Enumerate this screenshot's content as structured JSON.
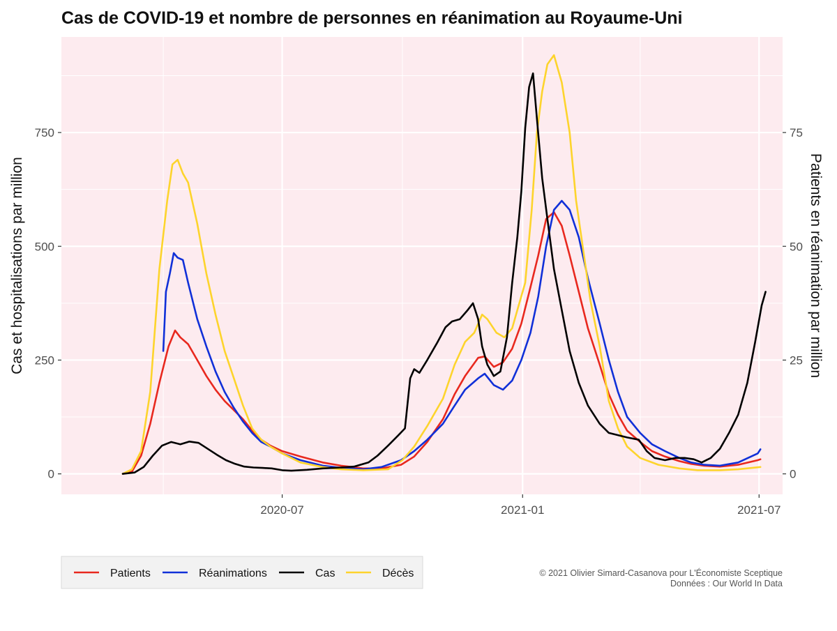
{
  "chart_data": {
    "type": "line",
    "title": "Cas de COVID-19 et nombre de personnes en réanimation au Royaume-Uni",
    "ylabel_left": "Cas et hospitalisations par million",
    "ylabel_right": "Patients en réanimation par million",
    "x_ticks": [
      "2020-07",
      "2021-01",
      "2021-07"
    ],
    "x_tick_dates": [
      "2020-07-01",
      "2021-01-01",
      "2021-07-01"
    ],
    "xlim": [
      "2020-01-14",
      "2021-07-19"
    ],
    "y_left_ticks": [
      0,
      250,
      500,
      750
    ],
    "y_left_lim": [
      -45,
      960
    ],
    "y_right_ticks": [
      0,
      25,
      50,
      75
    ],
    "y_right_lim": [
      -4.5,
      96
    ],
    "grid": true,
    "background": "#fdebef",
    "legend_position": "bottom-left",
    "series": [
      {
        "name": "Patients",
        "color": "#e8281e",
        "axis": "left",
        "points": [
          [
            "2020-03-01",
            0
          ],
          [
            "2020-03-08",
            5
          ],
          [
            "2020-03-15",
            40
          ],
          [
            "2020-03-22",
            110
          ],
          [
            "2020-03-29",
            200
          ],
          [
            "2020-04-05",
            280
          ],
          [
            "2020-04-10",
            315
          ],
          [
            "2020-04-14",
            300
          ],
          [
            "2020-04-20",
            285
          ],
          [
            "2020-04-27",
            250
          ],
          [
            "2020-05-04",
            215
          ],
          [
            "2020-05-11",
            185
          ],
          [
            "2020-05-18",
            160
          ],
          [
            "2020-05-25",
            140
          ],
          [
            "2020-06-01",
            120
          ],
          [
            "2020-06-08",
            95
          ],
          [
            "2020-06-15",
            75
          ],
          [
            "2020-06-22",
            62
          ],
          [
            "2020-07-01",
            50
          ],
          [
            "2020-07-15",
            38
          ],
          [
            "2020-08-01",
            25
          ],
          [
            "2020-08-15",
            18
          ],
          [
            "2020-09-01",
            12
          ],
          [
            "2020-09-15",
            12
          ],
          [
            "2020-09-30",
            20
          ],
          [
            "2020-10-10",
            38
          ],
          [
            "2020-10-20",
            70
          ],
          [
            "2020-11-01",
            120
          ],
          [
            "2020-11-10",
            175
          ],
          [
            "2020-11-18",
            215
          ],
          [
            "2020-11-28",
            255
          ],
          [
            "2020-12-03",
            258
          ],
          [
            "2020-12-10",
            235
          ],
          [
            "2020-12-17",
            245
          ],
          [
            "2020-12-24",
            275
          ],
          [
            "2020-12-31",
            330
          ],
          [
            "2021-01-07",
            410
          ],
          [
            "2021-01-13",
            480
          ],
          [
            "2021-01-19",
            560
          ],
          [
            "2021-01-25",
            575
          ],
          [
            "2021-01-31",
            545
          ],
          [
            "2021-02-06",
            480
          ],
          [
            "2021-02-13",
            400
          ],
          [
            "2021-02-20",
            320
          ],
          [
            "2021-03-01",
            240
          ],
          [
            "2021-03-08",
            175
          ],
          [
            "2021-03-15",
            130
          ],
          [
            "2021-03-22",
            95
          ],
          [
            "2021-04-01",
            70
          ],
          [
            "2021-04-10",
            50
          ],
          [
            "2021-04-20",
            38
          ],
          [
            "2021-05-01",
            28
          ],
          [
            "2021-05-10",
            22
          ],
          [
            "2021-05-20",
            18
          ],
          [
            "2021-06-01",
            16
          ],
          [
            "2021-06-15",
            20
          ],
          [
            "2021-06-30",
            30
          ],
          [
            "2021-07-02",
            32
          ]
        ]
      },
      {
        "name": "Réanimations",
        "color": "#1030d8",
        "axis": "right",
        "points": [
          [
            "2020-04-01",
            27
          ],
          [
            "2020-04-03",
            40
          ],
          [
            "2020-04-06",
            44
          ],
          [
            "2020-04-09",
            48.5
          ],
          [
            "2020-04-12",
            47.5
          ],
          [
            "2020-04-16",
            47
          ],
          [
            "2020-04-20",
            42
          ],
          [
            "2020-04-27",
            34
          ],
          [
            "2020-05-04",
            28
          ],
          [
            "2020-05-11",
            22.5
          ],
          [
            "2020-05-18",
            18
          ],
          [
            "2020-05-25",
            14.5
          ],
          [
            "2020-06-01",
            11.5
          ],
          [
            "2020-06-08",
            9
          ],
          [
            "2020-06-15",
            7
          ],
          [
            "2020-06-22",
            6
          ],
          [
            "2020-07-01",
            4.5
          ],
          [
            "2020-07-15",
            3
          ],
          [
            "2020-08-01",
            1.8
          ],
          [
            "2020-08-15",
            1.3
          ],
          [
            "2020-09-01",
            1.0
          ],
          [
            "2020-09-15",
            1.5
          ],
          [
            "2020-09-30",
            3
          ],
          [
            "2020-10-10",
            5
          ],
          [
            "2020-10-20",
            7.5
          ],
          [
            "2020-11-01",
            11
          ],
          [
            "2020-11-10",
            15
          ],
          [
            "2020-11-18",
            18.5
          ],
          [
            "2020-11-28",
            21
          ],
          [
            "2020-12-03",
            22
          ],
          [
            "2020-12-10",
            19.5
          ],
          [
            "2020-12-17",
            18.5
          ],
          [
            "2020-12-24",
            20.5
          ],
          [
            "2020-12-31",
            25
          ],
          [
            "2021-01-07",
            31
          ],
          [
            "2021-01-13",
            39
          ],
          [
            "2021-01-19",
            50
          ],
          [
            "2021-01-25",
            58
          ],
          [
            "2021-01-31",
            60
          ],
          [
            "2021-02-06",
            58
          ],
          [
            "2021-02-13",
            52
          ],
          [
            "2021-02-20",
            43
          ],
          [
            "2021-03-01",
            33
          ],
          [
            "2021-03-08",
            25
          ],
          [
            "2021-03-15",
            18
          ],
          [
            "2021-03-22",
            12.5
          ],
          [
            "2021-04-01",
            9
          ],
          [
            "2021-04-10",
            6.5
          ],
          [
            "2021-04-20",
            5
          ],
          [
            "2021-05-01",
            3.5
          ],
          [
            "2021-05-10",
            2.5
          ],
          [
            "2021-05-20",
            2
          ],
          [
            "2021-06-01",
            1.8
          ],
          [
            "2021-06-15",
            2.5
          ],
          [
            "2021-06-30",
            4.5
          ],
          [
            "2021-07-02",
            5.4
          ]
        ]
      },
      {
        "name": "Cas",
        "color": "#000000",
        "axis": "left",
        "points": [
          [
            "2020-03-01",
            0
          ],
          [
            "2020-03-10",
            3
          ],
          [
            "2020-03-17",
            15
          ],
          [
            "2020-03-24",
            40
          ],
          [
            "2020-03-31",
            62
          ],
          [
            "2020-04-07",
            70
          ],
          [
            "2020-04-14",
            65
          ],
          [
            "2020-04-21",
            71
          ],
          [
            "2020-04-28",
            68
          ],
          [
            "2020-05-05",
            55
          ],
          [
            "2020-05-12",
            42
          ],
          [
            "2020-05-19",
            30
          ],
          [
            "2020-05-26",
            22
          ],
          [
            "2020-06-02",
            16
          ],
          [
            "2020-06-09",
            14
          ],
          [
            "2020-06-16",
            13
          ],
          [
            "2020-06-23",
            12
          ],
          [
            "2020-07-01",
            8
          ],
          [
            "2020-07-08",
            7
          ],
          [
            "2020-07-20",
            9
          ],
          [
            "2020-08-01",
            12
          ],
          [
            "2020-08-15",
            14
          ],
          [
            "2020-08-25",
            16
          ],
          [
            "2020-09-05",
            25
          ],
          [
            "2020-09-12",
            40
          ],
          [
            "2020-09-20",
            62
          ],
          [
            "2020-09-28",
            85
          ],
          [
            "2020-10-03",
            100
          ],
          [
            "2020-10-07",
            210
          ],
          [
            "2020-10-10",
            230
          ],
          [
            "2020-10-14",
            222
          ],
          [
            "2020-10-20",
            250
          ],
          [
            "2020-10-28",
            290
          ],
          [
            "2020-11-03",
            322
          ],
          [
            "2020-11-08",
            335
          ],
          [
            "2020-11-14",
            340
          ],
          [
            "2020-11-20",
            360
          ],
          [
            "2020-11-24",
            375
          ],
          [
            "2020-11-28",
            340
          ],
          [
            "2020-12-01",
            280
          ],
          [
            "2020-12-05",
            240
          ],
          [
            "2020-12-10",
            215
          ],
          [
            "2020-12-15",
            225
          ],
          [
            "2020-12-20",
            300
          ],
          [
            "2020-12-24",
            420
          ],
          [
            "2020-12-28",
            520
          ],
          [
            "2020-12-31",
            620
          ],
          [
            "2021-01-03",
            760
          ],
          [
            "2021-01-06",
            850
          ],
          [
            "2021-01-09",
            880
          ],
          [
            "2021-01-12",
            780
          ],
          [
            "2021-01-16",
            650
          ],
          [
            "2021-01-20",
            560
          ],
          [
            "2021-01-25",
            450
          ],
          [
            "2021-01-31",
            360
          ],
          [
            "2021-02-06",
            270
          ],
          [
            "2021-02-13",
            200
          ],
          [
            "2021-02-20",
            150
          ],
          [
            "2021-03-01",
            110
          ],
          [
            "2021-03-08",
            90
          ],
          [
            "2021-03-15",
            85
          ],
          [
            "2021-03-22",
            80
          ],
          [
            "2021-03-31",
            75
          ],
          [
            "2021-04-06",
            50
          ],
          [
            "2021-04-12",
            35
          ],
          [
            "2021-04-20",
            30
          ],
          [
            "2021-04-28",
            35
          ],
          [
            "2021-05-05",
            35
          ],
          [
            "2021-05-12",
            32
          ],
          [
            "2021-05-18",
            25
          ],
          [
            "2021-05-25",
            35
          ],
          [
            "2021-06-01",
            55
          ],
          [
            "2021-06-08",
            90
          ],
          [
            "2021-06-15",
            130
          ],
          [
            "2021-06-22",
            200
          ],
          [
            "2021-06-28",
            290
          ],
          [
            "2021-07-03",
            370
          ],
          [
            "2021-07-06",
            400
          ]
        ]
      },
      {
        "name": "Décès",
        "color": "#fdd42c",
        "axis": "right",
        "points": [
          [
            "2020-03-01",
            0
          ],
          [
            "2020-03-08",
            1
          ],
          [
            "2020-03-15",
            5
          ],
          [
            "2020-03-22",
            18
          ],
          [
            "2020-03-29",
            45
          ],
          [
            "2020-04-04",
            60
          ],
          [
            "2020-04-08",
            68
          ],
          [
            "2020-04-12",
            69
          ],
          [
            "2020-04-16",
            66
          ],
          [
            "2020-04-20",
            64
          ],
          [
            "2020-04-27",
            55
          ],
          [
            "2020-05-04",
            44
          ],
          [
            "2020-05-11",
            35
          ],
          [
            "2020-05-18",
            27
          ],
          [
            "2020-05-25",
            21
          ],
          [
            "2020-06-01",
            15
          ],
          [
            "2020-06-08",
            10
          ],
          [
            "2020-06-15",
            7.5
          ],
          [
            "2020-06-22",
            6
          ],
          [
            "2020-07-01",
            4.5
          ],
          [
            "2020-07-15",
            2.5
          ],
          [
            "2020-08-01",
            1.5
          ],
          [
            "2020-08-15",
            1.0
          ],
          [
            "2020-09-01",
            0.8
          ],
          [
            "2020-09-20",
            1.0
          ],
          [
            "2020-10-01",
            3
          ],
          [
            "2020-10-10",
            6
          ],
          [
            "2020-10-20",
            10.5
          ],
          [
            "2020-11-01",
            16.5
          ],
          [
            "2020-11-10",
            24
          ],
          [
            "2020-11-18",
            29
          ],
          [
            "2020-11-25",
            31
          ],
          [
            "2020-12-01",
            35
          ],
          [
            "2020-12-05",
            34
          ],
          [
            "2020-12-12",
            31
          ],
          [
            "2020-12-18",
            30
          ],
          [
            "2020-12-24",
            32
          ],
          [
            "2020-12-29",
            37
          ],
          [
            "2021-01-03",
            42
          ],
          [
            "2021-01-08",
            58
          ],
          [
            "2021-01-12",
            75
          ],
          [
            "2021-01-16",
            84
          ],
          [
            "2021-01-20",
            90
          ],
          [
            "2021-01-25",
            92
          ],
          [
            "2021-01-31",
            86
          ],
          [
            "2021-02-06",
            75
          ],
          [
            "2021-02-11",
            60
          ],
          [
            "2021-02-16",
            50
          ],
          [
            "2021-02-22",
            38
          ],
          [
            "2021-03-01",
            28
          ],
          [
            "2021-03-08",
            16
          ],
          [
            "2021-03-15",
            10
          ],
          [
            "2021-03-22",
            6
          ],
          [
            "2021-04-01",
            3.5
          ],
          [
            "2021-04-15",
            2.0
          ],
          [
            "2021-05-01",
            1.2
          ],
          [
            "2021-05-15",
            0.8
          ],
          [
            "2021-06-01",
            0.8
          ],
          [
            "2021-06-15",
            1.0
          ],
          [
            "2021-07-02",
            1.5
          ]
        ]
      }
    ]
  },
  "credits": {
    "line1": "© 2021 Olivier Simard-Casanova pour L'Économiste Sceptique",
    "line2": "Données : Our World In Data"
  }
}
